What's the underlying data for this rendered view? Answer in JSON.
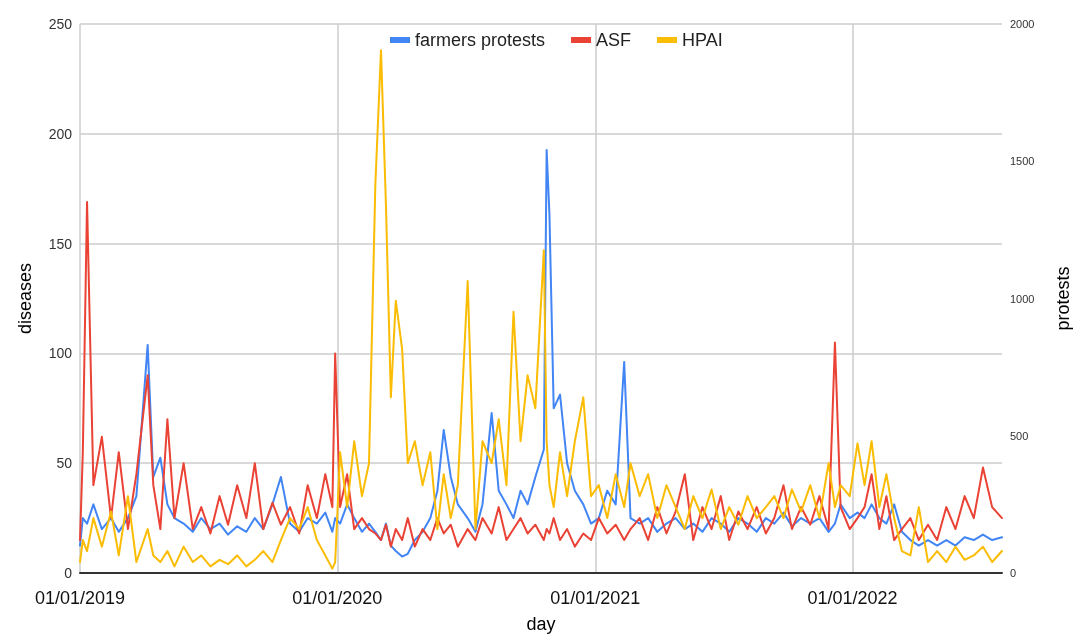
{
  "chart_data": {
    "type": "line",
    "xlabel": "day",
    "ylabel": "diseases",
    "y2label": "protests",
    "x": [
      "2019-01-01",
      "2019-01-05",
      "2019-01-11",
      "2019-01-20",
      "2019-02-01",
      "2019-02-14",
      "2019-02-25",
      "2019-03-10",
      "2019-03-22",
      "2019-04-07",
      "2019-04-15",
      "2019-04-25",
      "2019-05-05",
      "2019-05-15",
      "2019-05-28",
      "2019-06-10",
      "2019-06-22",
      "2019-07-05",
      "2019-07-18",
      "2019-07-30",
      "2019-08-12",
      "2019-08-25",
      "2019-09-06",
      "2019-09-18",
      "2019-10-01",
      "2019-10-13",
      "2019-10-26",
      "2019-11-08",
      "2019-11-20",
      "2019-12-03",
      "2019-12-15",
      "2019-12-25",
      "2019-12-29",
      "2020-01-05",
      "2020-01-15",
      "2020-01-25",
      "2020-02-05",
      "2020-02-15",
      "2020-02-24",
      "2020-03-03",
      "2020-03-10",
      "2020-03-17",
      "2020-03-24",
      "2020-04-02",
      "2020-04-10",
      "2020-04-20",
      "2020-05-01",
      "2020-05-12",
      "2020-05-22",
      "2020-05-31",
      "2020-06-10",
      "2020-06-20",
      "2020-07-04",
      "2020-07-15",
      "2020-07-25",
      "2020-08-07",
      "2020-08-17",
      "2020-08-28",
      "2020-09-07",
      "2020-09-17",
      "2020-09-27",
      "2020-10-08",
      "2020-10-20",
      "2020-10-24",
      "2020-10-28",
      "2020-11-03",
      "2020-11-12",
      "2020-11-22",
      "2020-12-03",
      "2020-12-15",
      "2020-12-26",
      "2021-01-06",
      "2021-01-18",
      "2021-01-30",
      "2021-02-11",
      "2021-02-20",
      "2021-03-05",
      "2021-03-17",
      "2021-03-30",
      "2021-04-12",
      "2021-04-25",
      "2021-05-08",
      "2021-05-20",
      "2021-06-02",
      "2021-06-15",
      "2021-06-28",
      "2021-07-10",
      "2021-07-23",
      "2021-08-05",
      "2021-08-18",
      "2021-08-31",
      "2021-09-12",
      "2021-09-25",
      "2021-10-07",
      "2021-10-20",
      "2021-11-02",
      "2021-11-15",
      "2021-11-28",
      "2021-12-07",
      "2021-12-15",
      "2021-12-28",
      "2022-01-08",
      "2022-01-18",
      "2022-01-28",
      "2022-02-08",
      "2022-02-18",
      "2022-03-01",
      "2022-03-12",
      "2022-03-24",
      "2022-04-05",
      "2022-04-18",
      "2022-05-01",
      "2022-05-14",
      "2022-05-27",
      "2022-06-09",
      "2022-06-22",
      "2022-07-05",
      "2022-07-18",
      "2022-08-01"
    ],
    "series": [
      {
        "name": "farmers protests",
        "color": "#4285f4",
        "axis": "y2",
        "values": [
          100,
          200,
          180,
          250,
          160,
          200,
          150,
          200,
          280,
          831,
          350,
          420,
          250,
          200,
          180,
          150,
          200,
          160,
          180,
          140,
          170,
          150,
          200,
          160,
          250,
          350,
          180,
          150,
          200,
          180,
          220,
          150,
          200,
          180,
          250,
          200,
          150,
          180,
          150,
          120,
          180,
          100,
          80,
          60,
          70,
          120,
          150,
          200,
          300,
          521,
          350,
          250,
          200,
          150,
          250,
          583,
          300,
          250,
          200,
          300,
          250,
          350,
          450,
          1541,
          1304,
          600,
          650,
          400,
          300,
          250,
          180,
          200,
          300,
          250,
          769,
          200,
          180,
          200,
          150,
          180,
          200,
          160,
          180,
          150,
          200,
          180,
          150,
          200,
          180,
          150,
          200,
          180,
          220,
          170,
          200,
          180,
          200,
          150,
          180,
          250,
          200,
          220,
          200,
          250,
          200,
          180,
          250,
          150,
          120,
          100,
          120,
          100,
          120,
          100,
          130,
          120,
          140,
          120,
          130
        ]
      },
      {
        "name": "ASF",
        "color": "#ea4335",
        "values": [
          15,
          55,
          169,
          40,
          62,
          25,
          55,
          20,
          45,
          90,
          40,
          20,
          70,
          25,
          50,
          20,
          30,
          18,
          35,
          22,
          40,
          25,
          50,
          20,
          32,
          22,
          30,
          18,
          40,
          25,
          45,
          30,
          100,
          30,
          45,
          20,
          25,
          20,
          18,
          15,
          22,
          12,
          20,
          15,
          25,
          12,
          20,
          15,
          25,
          18,
          22,
          12,
          20,
          15,
          25,
          18,
          30,
          15,
          20,
          25,
          18,
          22,
          15,
          20,
          18,
          25,
          15,
          20,
          12,
          18,
          15,
          25,
          18,
          22,
          15,
          20,
          25,
          15,
          30,
          18,
          28,
          45,
          15,
          30,
          20,
          35,
          15,
          28,
          20,
          30,
          18,
          25,
          40,
          20,
          30,
          22,
          35,
          20,
          105,
          30,
          20,
          25,
          30,
          45,
          20,
          35,
          15,
          20,
          25,
          15,
          22,
          15,
          30,
          20,
          35,
          25,
          48,
          30,
          25
        ]
      },
      {
        "name": "HPAI",
        "color": "#fbbc04",
        "values": [
          5,
          15,
          10,
          25,
          12,
          28,
          8,
          35,
          5,
          20,
          8,
          5,
          10,
          3,
          12,
          5,
          8,
          3,
          6,
          4,
          8,
          3,
          6,
          10,
          5,
          15,
          25,
          20,
          30,
          15,
          8,
          2,
          5,
          55,
          30,
          60,
          35,
          50,
          177,
          238,
          168,
          80,
          124,
          102,
          50,
          60,
          40,
          55,
          20,
          45,
          25,
          40,
          133,
          20,
          60,
          50,
          70,
          40,
          119,
          60,
          90,
          75,
          147,
          60,
          40,
          30,
          55,
          35,
          60,
          80,
          35,
          40,
          25,
          45,
          30,
          50,
          35,
          45,
          25,
          40,
          30,
          20,
          35,
          25,
          38,
          20,
          30,
          22,
          35,
          25,
          30,
          35,
          25,
          38,
          28,
          40,
          25,
          50,
          30,
          40,
          35,
          59,
          40,
          60,
          30,
          45,
          25,
          10,
          8,
          30,
          5,
          10,
          5,
          12,
          6,
          8,
          12,
          5,
          10
        ]
      }
    ],
    "xlim": [
      "2019-01-01",
      "2022-08-01"
    ],
    "xticks": [
      {
        "value": "2019-01-01",
        "label": "01/01/2019"
      },
      {
        "value": "2020-01-01",
        "label": "01/01/2020"
      },
      {
        "value": "2021-01-01",
        "label": "01/01/2021"
      },
      {
        "value": "2022-01-01",
        "label": "01/01/2022"
      }
    ],
    "ylim": [
      0,
      250
    ],
    "yticks": [
      0,
      50,
      100,
      150,
      200,
      250
    ],
    "y2lim": [
      0,
      2000
    ],
    "y2ticks": [
      0,
      500,
      1000,
      1500,
      2000
    ],
    "grid": true,
    "legend": "top",
    "marker": "none",
    "line_style": "solid"
  }
}
